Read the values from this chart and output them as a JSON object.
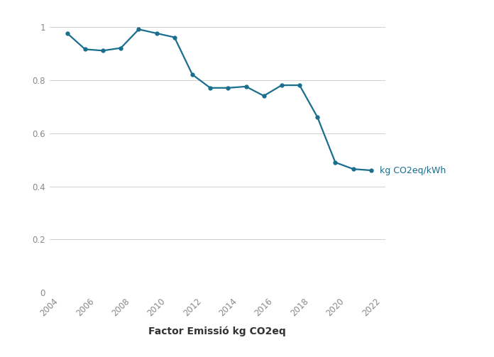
{
  "years": [
    2005,
    2006,
    2007,
    2008,
    2009,
    2010,
    2011,
    2012,
    2013,
    2014,
    2015,
    2016,
    2017,
    2018,
    2019,
    2020,
    2021,
    2022
  ],
  "values": [
    0.975,
    0.915,
    0.91,
    0.92,
    0.99,
    0.975,
    0.96,
    0.82,
    0.77,
    0.77,
    0.775,
    0.74,
    0.78,
    0.78,
    0.66,
    0.49,
    0.465,
    0.46
  ],
  "line_color": "#1a6e8e",
  "marker_color": "#1a6e8e",
  "marker_size": 3.5,
  "line_width": 1.6,
  "xlabel": "Factor Emissió kg CO2eq",
  "legend_label": "kg CO2eq/kWh",
  "xlim": [
    2004,
    2022.8
  ],
  "ylim": [
    0,
    1.06
  ],
  "yticks": [
    0,
    0.2,
    0.4,
    0.6,
    0.8,
    1.0
  ],
  "xticks": [
    2004,
    2006,
    2008,
    2010,
    2012,
    2014,
    2016,
    2018,
    2020,
    2022
  ],
  "grid_color": "#d0d0d0",
  "background_color": "#ffffff",
  "text_color": "#888888",
  "xlabel_color": "#333333",
  "xlabel_fontsize": 10
}
